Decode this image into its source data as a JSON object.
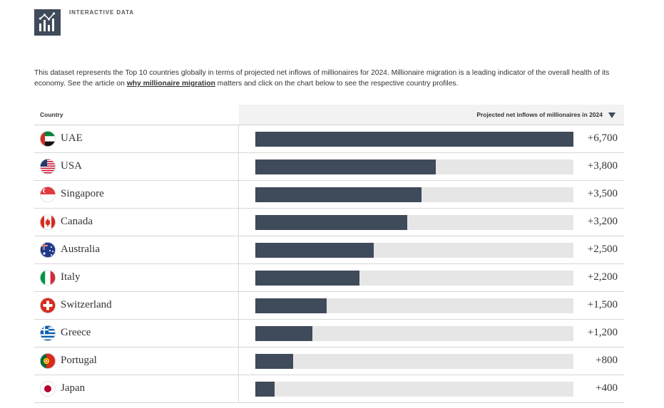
{
  "header": {
    "kicker": "INTERACTIVE DATA",
    "icon": "bar-chart-line-icon"
  },
  "intro": {
    "text_before": "This dataset represents the Top 10 countries globally in terms of projected net inflows of millionaires for 2024. Millionaire migration is a leading indicator of the overall health of its economy. See the article on ",
    "link_text": "why millionaire migration",
    "text_after": " matters and click on the chart below to see the respective country profiles."
  },
  "table": {
    "col_country": "Country",
    "col_value": "Projected net inflows of millionaires in 2024",
    "sort_icon": "sort-down-icon"
  },
  "colors": {
    "bar": "#3f4a5a",
    "track": "#e6e6e6"
  },
  "chart_data": {
    "type": "bar",
    "orientation": "horizontal",
    "xlim": [
      0,
      6700
    ],
    "categories": [
      "UAE",
      "USA",
      "Singapore",
      "Canada",
      "Australia",
      "Italy",
      "Switzerland",
      "Greece",
      "Portugal",
      "Japan"
    ],
    "values": [
      6700,
      3800,
      3500,
      3200,
      2500,
      2200,
      1500,
      1200,
      800,
      400
    ],
    "labels": [
      "+6,700",
      "+3,800",
      "+3,500",
      "+3,200",
      "+2,500",
      "+2,200",
      "+1,500",
      "+1,200",
      "+800",
      "+400"
    ]
  }
}
